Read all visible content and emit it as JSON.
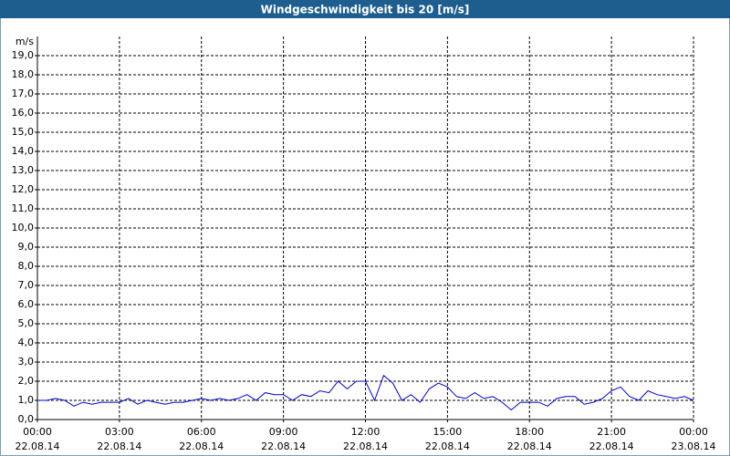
{
  "chart_data": {
    "type": "line",
    "title": "Windgeschwindigkeit bis 20 [m/s]",
    "y_unit": "m/s",
    "x": [
      0,
      20,
      40,
      60,
      80,
      100,
      120,
      140,
      160,
      180,
      200,
      220,
      240,
      260,
      280,
      300,
      320,
      340,
      360,
      380,
      400,
      420,
      440,
      460,
      480,
      500,
      520,
      540,
      560,
      580,
      600,
      620,
      640,
      660,
      680,
      700,
      720,
      740,
      760,
      780,
      800,
      820,
      840,
      860,
      880,
      900,
      920,
      940,
      960,
      980,
      1000,
      1020,
      1040,
      1060,
      1080,
      1100,
      1120,
      1140,
      1160,
      1180,
      1200,
      1220,
      1240,
      1260,
      1280,
      1300,
      1320,
      1340,
      1360,
      1380,
      1400,
      1420,
      1440
    ],
    "series": [
      {
        "color": "#0000cc",
        "values": [
          1.0,
          1.0,
          1.1,
          1.0,
          0.7,
          0.9,
          0.8,
          0.9,
          0.9,
          0.9,
          1.1,
          0.8,
          1.0,
          0.9,
          0.8,
          0.9,
          0.9,
          1.0,
          1.1,
          1.0,
          1.1,
          1.0,
          1.1,
          1.3,
          1.0,
          1.4,
          1.3,
          1.3,
          1.0,
          1.3,
          1.2,
          1.5,
          1.4,
          2.0,
          1.6,
          2.0,
          2.0,
          1.0,
          2.3,
          1.9,
          1.0,
          1.3,
          0.9,
          1.6,
          1.9,
          1.7,
          1.2,
          1.1,
          1.4,
          1.1,
          1.2,
          0.9,
          0.5,
          0.9,
          0.9,
          0.9,
          0.7,
          1.1,
          1.2,
          1.2,
          0.8,
          0.9,
          1.1,
          1.5,
          1.7,
          1.2,
          1.0,
          1.5,
          1.3,
          1.2,
          1.1,
          1.2,
          1.0
        ]
      }
    ],
    "xlim": [
      0,
      1440
    ],
    "xticks": [
      {
        "value": 0,
        "label": "00:00",
        "date": "22.08.14"
      },
      {
        "value": 180,
        "label": "03:00",
        "date": "22.08.14"
      },
      {
        "value": 360,
        "label": "06:00",
        "date": "22.08.14"
      },
      {
        "value": 540,
        "label": "09:00",
        "date": "22.08.14"
      },
      {
        "value": 720,
        "label": "12:00",
        "date": "22.08.14"
      },
      {
        "value": 900,
        "label": "15:00",
        "date": "22.08.14"
      },
      {
        "value": 1080,
        "label": "18:00",
        "date": "22.08.14"
      },
      {
        "value": 1260,
        "label": "21:00",
        "date": "22.08.14"
      },
      {
        "value": 1440,
        "label": "00:00",
        "date": "23.08.14"
      }
    ],
    "ylim": [
      0,
      20
    ],
    "yticks": [
      {
        "value": 0,
        "label": "0,0"
      },
      {
        "value": 1,
        "label": "1,0"
      },
      {
        "value": 2,
        "label": "2,0"
      },
      {
        "value": 3,
        "label": "3,0"
      },
      {
        "value": 4,
        "label": "4,0"
      },
      {
        "value": 5,
        "label": "5,0"
      },
      {
        "value": 6,
        "label": "6,0"
      },
      {
        "value": 7,
        "label": "7,0"
      },
      {
        "value": 8,
        "label": "8,0"
      },
      {
        "value": 9,
        "label": "9,0"
      },
      {
        "value": 10,
        "label": "10,0"
      },
      {
        "value": 11,
        "label": "11,0"
      },
      {
        "value": 12,
        "label": "12,0"
      },
      {
        "value": 13,
        "label": "13,0"
      },
      {
        "value": 14,
        "label": "14,0"
      },
      {
        "value": 15,
        "label": "15,0"
      },
      {
        "value": 16,
        "label": "16,0"
      },
      {
        "value": 17,
        "label": "17,0"
      },
      {
        "value": 18,
        "label": "18,0"
      },
      {
        "value": 19,
        "label": "19,0"
      }
    ],
    "grid": true
  }
}
